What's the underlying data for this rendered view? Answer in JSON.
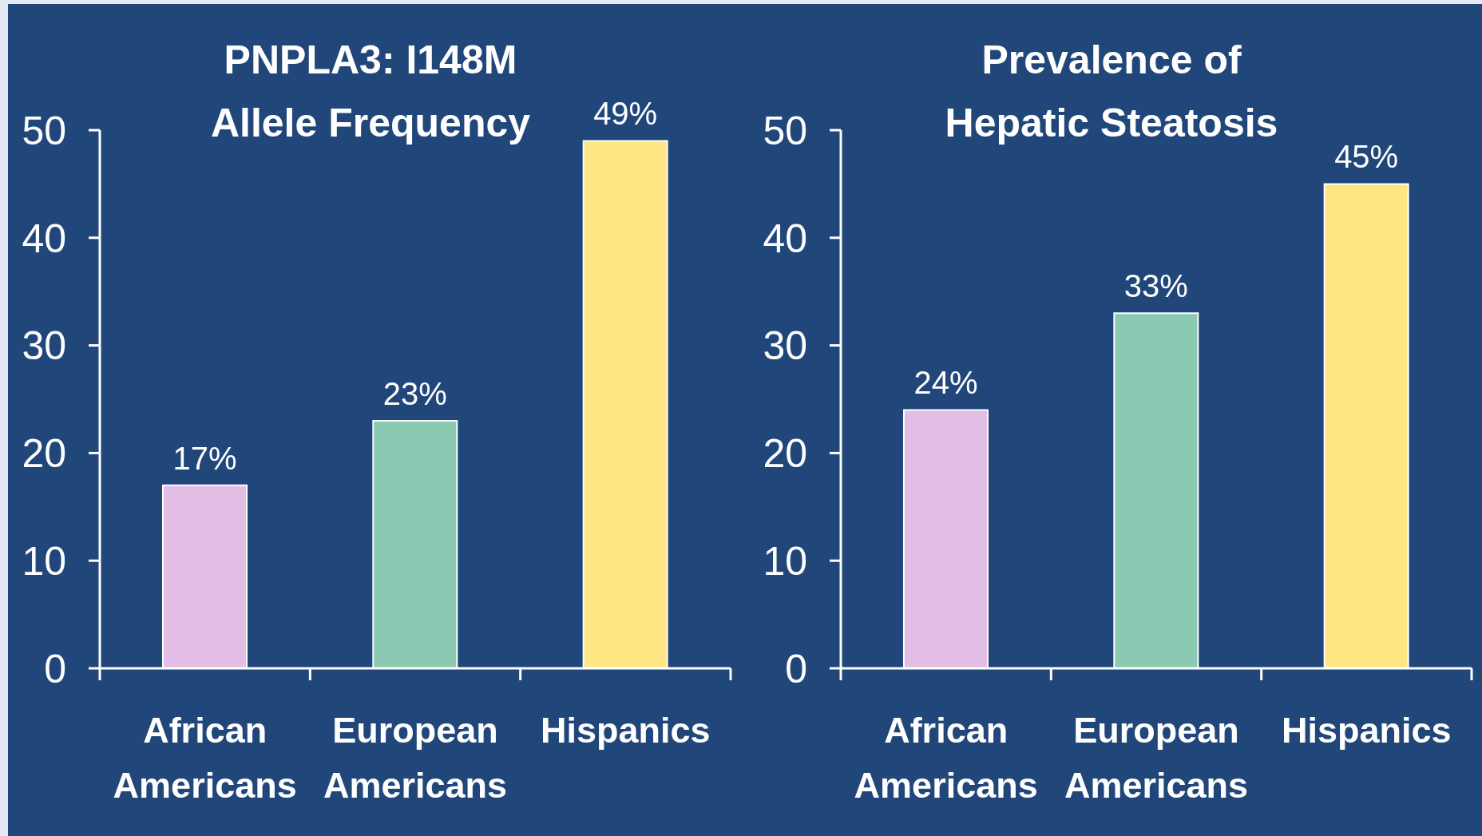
{
  "chart_data": [
    {
      "type": "bar",
      "title": "PNPLA3: I148M\nAllele Frequency",
      "categories": [
        "African Americans",
        "European Americans",
        "Hispanics"
      ],
      "values": [
        17,
        23,
        49
      ],
      "colors": [
        "#e2bde6",
        "#8bc9b2",
        "#fde683"
      ],
      "value_labels": [
        "17%",
        "23%",
        "49%"
      ],
      "ylim": [
        0,
        50
      ],
      "yticks": [
        0,
        10,
        20,
        30,
        40,
        50
      ]
    },
    {
      "type": "bar",
      "title": "Prevalence of\nHepatic Steatosis",
      "categories": [
        "African Americans",
        "European Americans",
        "Hispanics"
      ],
      "values": [
        24,
        33,
        45
      ],
      "colors": [
        "#e2bde6",
        "#8bc9b2",
        "#fde683"
      ],
      "value_labels": [
        "24%",
        "33%",
        "45%"
      ],
      "ylim": [
        0,
        50
      ],
      "yticks": [
        0,
        10,
        20,
        30,
        40,
        50
      ]
    }
  ]
}
